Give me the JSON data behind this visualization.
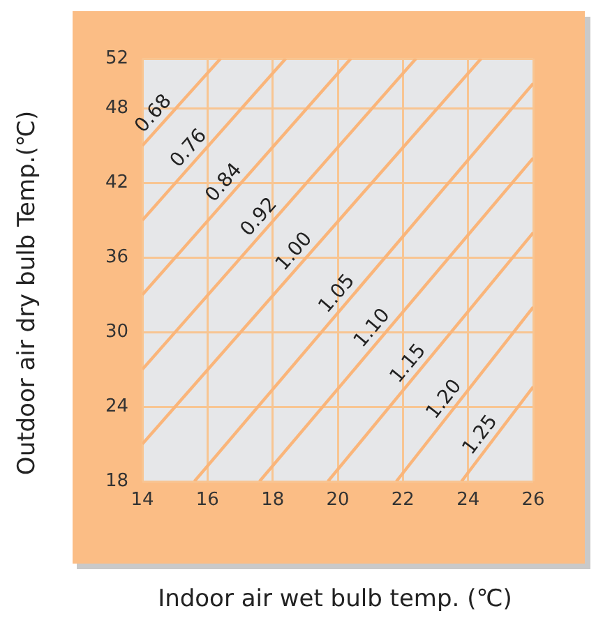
{
  "chart_data": {
    "type": "line",
    "xlabel": "Indoor air wet bulb temp. (℃)",
    "ylabel": "Outdoor air dry bulb Temp.(℃)",
    "xlim": [
      14,
      26
    ],
    "ylim": [
      18,
      52
    ],
    "xticks": [
      14,
      16,
      18,
      20,
      22,
      24,
      26
    ],
    "yticks": [
      18,
      24,
      30,
      36,
      42,
      48,
      52
    ],
    "grid": true,
    "marker": "none",
    "series": [
      {
        "name": "0.68",
        "color": "#fab57a",
        "x": [
          14,
          16.4
        ],
        "values": [
          45,
          52
        ]
      },
      {
        "name": "0.76",
        "color": "#fab57a",
        "x": [
          14,
          18.4
        ],
        "values": [
          39,
          52
        ]
      },
      {
        "name": "0.84",
        "color": "#fab57a",
        "x": [
          14,
          20.4
        ],
        "values": [
          33,
          52
        ]
      },
      {
        "name": "0.92",
        "color": "#fab57a",
        "x": [
          14,
          22.4
        ],
        "values": [
          27,
          52
        ]
      },
      {
        "name": "1.00",
        "color": "#fab57a",
        "x": [
          14,
          24.4
        ],
        "values": [
          21,
          52
        ]
      },
      {
        "name": "1.05",
        "color": "#fab57a",
        "x": [
          15.6,
          26
        ],
        "values": [
          18,
          50
        ]
      },
      {
        "name": "1.10",
        "color": "#fab57a",
        "x": [
          17.6,
          26
        ],
        "values": [
          18,
          44
        ]
      },
      {
        "name": "1.15",
        "color": "#fab57a",
        "x": [
          19.7,
          26
        ],
        "values": [
          18,
          38
        ]
      },
      {
        "name": "1.20",
        "color": "#fab57a",
        "x": [
          21.8,
          26
        ],
        "values": [
          18,
          32
        ]
      },
      {
        "name": "1.25",
        "color": "#fab57a",
        "x": [
          23.8,
          26
        ],
        "values": [
          18,
          25.6
        ]
      }
    ]
  }
}
